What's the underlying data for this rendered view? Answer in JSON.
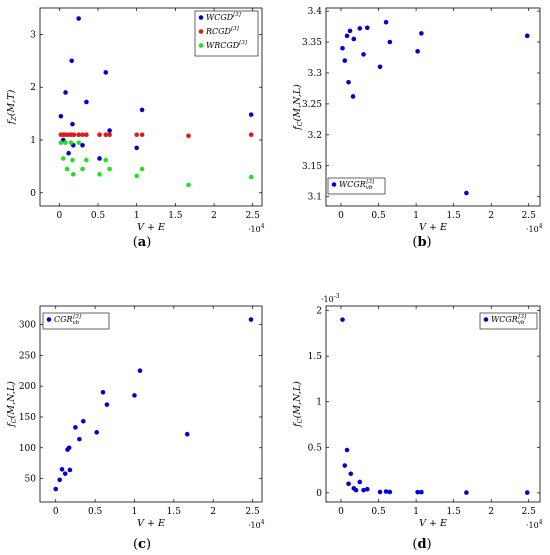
{
  "chart_data": [
    {
      "id": "a",
      "type": "scatter",
      "panel_label": "(a)",
      "panel_letter": "a",
      "xlabel": "V + E",
      "ylabel": "f_Z(M,T)",
      "x_multiplier": "·10^4",
      "xlim": [
        -0.25,
        2.62
      ],
      "ylim": [
        -0.25,
        3.5
      ],
      "xticks": [
        0,
        0.5,
        1,
        1.5,
        2,
        2.5
      ],
      "yticks": [
        0,
        1,
        2,
        3
      ],
      "xtick_labels": [
        "0",
        "0.5",
        "1",
        "1.5",
        "2",
        "2.5"
      ],
      "ytick_labels": [
        "0",
        "1",
        "2",
        "3"
      ],
      "grid": false,
      "legend_position": "top-right",
      "series": [
        {
          "name": "WCGD^[3]",
          "color": "#0000d0",
          "points": [
            [
              0.02,
              1.45
            ],
            [
              0.05,
              1.0
            ],
            [
              0.08,
              1.9
            ],
            [
              0.12,
              0.75
            ],
            [
              0.16,
              2.5
            ],
            [
              0.17,
              1.3
            ],
            [
              0.18,
              0.9
            ],
            [
              0.25,
              3.3
            ],
            [
              0.3,
              0.9
            ],
            [
              0.35,
              1.72
            ],
            [
              0.52,
              0.65
            ],
            [
              0.6,
              2.28
            ],
            [
              0.65,
              1.18
            ],
            [
              1.0,
              0.85
            ],
            [
              1.07,
              1.57
            ],
            [
              2.48,
              1.48
            ]
          ]
        },
        {
          "name": "RCGD^[3]",
          "color": "#e01818",
          "points": [
            [
              0.02,
              1.1
            ],
            [
              0.05,
              1.1
            ],
            [
              0.08,
              1.1
            ],
            [
              0.12,
              1.1
            ],
            [
              0.16,
              1.1
            ],
            [
              0.19,
              1.1
            ],
            [
              0.25,
              1.1
            ],
            [
              0.3,
              1.1
            ],
            [
              0.35,
              1.1
            ],
            [
              0.52,
              1.1
            ],
            [
              0.6,
              1.1
            ],
            [
              0.65,
              1.1
            ],
            [
              1.0,
              1.1
            ],
            [
              1.07,
              1.1
            ],
            [
              1.67,
              1.08
            ],
            [
              2.48,
              1.1
            ]
          ]
        },
        {
          "name": "WRCGD^[3]",
          "color": "#22e022",
          "points": [
            [
              0.02,
              0.95
            ],
            [
              0.05,
              0.65
            ],
            [
              0.08,
              0.95
            ],
            [
              0.1,
              0.45
            ],
            [
              0.15,
              0.95
            ],
            [
              0.17,
              0.62
            ],
            [
              0.18,
              0.35
            ],
            [
              0.25,
              0.95
            ],
            [
              0.3,
              0.45
            ],
            [
              0.35,
              0.62
            ],
            [
              0.52,
              0.35
            ],
            [
              0.6,
              0.62
            ],
            [
              0.65,
              0.45
            ],
            [
              1.0,
              0.32
            ],
            [
              1.07,
              0.45
            ],
            [
              1.67,
              0.15
            ],
            [
              2.48,
              0.3
            ]
          ]
        }
      ]
    },
    {
      "id": "b",
      "type": "scatter",
      "panel_label": "(b)",
      "panel_letter": "b",
      "xlabel": "V + E",
      "ylabel": "f_C(M,N,L)",
      "x_multiplier": "·10^4",
      "xlim": [
        -0.2,
        2.65
      ],
      "ylim": [
        3.085,
        3.405
      ],
      "xticks": [
        0,
        0.5,
        1,
        1.5,
        2,
        2.5
      ],
      "yticks": [
        3.1,
        3.15,
        3.2,
        3.25,
        3.3,
        3.35,
        3.4
      ],
      "xtick_labels": [
        "0",
        "0.5",
        "1",
        "1.5",
        "2",
        "2.5"
      ],
      "ytick_labels": [
        "3.1",
        "3.15",
        "3.2",
        "3.25",
        "3.3",
        "3.35",
        "3.4"
      ],
      "grid": false,
      "legend_position": "bottom-left",
      "series": [
        {
          "name": "WCGR_vb^[3]",
          "color": "#0000d0",
          "points": [
            [
              0.02,
              3.34
            ],
            [
              0.05,
              3.32
            ],
            [
              0.08,
              3.36
            ],
            [
              0.1,
              3.285
            ],
            [
              0.12,
              3.368
            ],
            [
              0.16,
              3.262
            ],
            [
              0.17,
              3.355
            ],
            [
              0.25,
              3.372
            ],
            [
              0.3,
              3.33
            ],
            [
              0.35,
              3.373
            ],
            [
              0.52,
              3.31
            ],
            [
              0.6,
              3.382
            ],
            [
              0.65,
              3.35
            ],
            [
              1.02,
              3.335
            ],
            [
              1.07,
              3.364
            ],
            [
              1.67,
              3.106
            ],
            [
              2.48,
              3.36
            ]
          ]
        }
      ]
    },
    {
      "id": "c",
      "type": "scatter",
      "panel_label": "(c)",
      "panel_letter": "c",
      "xlabel": "V + E",
      "ylabel": "f_C(M,N,L)",
      "x_multiplier": "·10^4",
      "xlim": [
        -0.2,
        2.62
      ],
      "ylim": [
        12,
        330
      ],
      "xticks": [
        0,
        0.5,
        1,
        1.5,
        2,
        2.5
      ],
      "yticks": [
        50,
        100,
        150,
        200,
        250,
        300
      ],
      "xtick_labels": [
        "0",
        "0.5",
        "1",
        "1.5",
        "2",
        "2.5"
      ],
      "ytick_labels": [
        "50",
        "100",
        "150",
        "200",
        "250",
        "300"
      ],
      "grid": false,
      "legend_position": "top-left",
      "series": [
        {
          "name": "CGR_vb^[3]",
          "color": "#0000d0",
          "points": [
            [
              0.0,
              33
            ],
            [
              0.05,
              48
            ],
            [
              0.08,
              65
            ],
            [
              0.12,
              58
            ],
            [
              0.15,
              97
            ],
            [
              0.17,
              100
            ],
            [
              0.18,
              64
            ],
            [
              0.25,
              133
            ],
            [
              0.3,
              114
            ],
            [
              0.35,
              143
            ],
            [
              0.52,
              125
            ],
            [
              0.6,
              190
            ],
            [
              0.65,
              170
            ],
            [
              1.0,
              185
            ],
            [
              1.07,
              225
            ],
            [
              1.67,
              122
            ],
            [
              2.48,
              308
            ]
          ]
        }
      ]
    },
    {
      "id": "d",
      "type": "scatter",
      "panel_label": "(d)",
      "panel_letter": "d",
      "xlabel": "V + E",
      "ylabel": "f_C(M,N,L)",
      "x_multiplier": "·10^4",
      "y_multiplier": "·10^-3",
      "xlim": [
        -0.2,
        2.65
      ],
      "ylim": [
        -0.0001,
        0.00205
      ],
      "xticks": [
        0,
        0.5,
        1,
        1.5,
        2,
        2.5
      ],
      "yticks": [
        0,
        0.0005,
        0.001,
        0.0015,
        0.002
      ],
      "xtick_labels": [
        "0",
        "0.5",
        "1",
        "1.5",
        "2",
        "2.5"
      ],
      "ytick_labels": [
        "0",
        "0.5",
        "1",
        "1.5",
        "2"
      ],
      "grid": false,
      "legend_position": "top-right",
      "series": [
        {
          "name": "WCGR_vb^[3]",
          "color": "#0000d0",
          "points": [
            [
              0.02,
              0.0019
            ],
            [
              0.05,
              0.0003
            ],
            [
              0.08,
              0.00047
            ],
            [
              0.1,
              0.0001
            ],
            [
              0.13,
              0.00021
            ],
            [
              0.17,
              5e-05
            ],
            [
              0.2,
              3e-05
            ],
            [
              0.25,
              0.00012
            ],
            [
              0.3,
              3e-05
            ],
            [
              0.35,
              4e-05
            ],
            [
              0.52,
              1e-05
            ],
            [
              0.6,
              1.5e-05
            ],
            [
              0.65,
              1e-05
            ],
            [
              1.02,
              8e-06
            ],
            [
              1.07,
              8e-06
            ],
            [
              1.67,
              3e-06
            ],
            [
              2.48,
              3e-06
            ]
          ]
        }
      ]
    }
  ]
}
